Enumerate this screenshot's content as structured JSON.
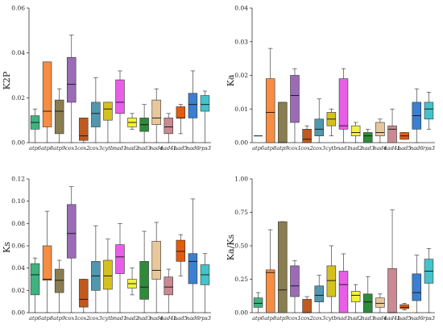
{
  "categories": [
    "atp6",
    "atp8",
    "atp9",
    "cox1",
    "cox2",
    "cox3",
    "cytb",
    "nad1",
    "nad2",
    "nad3",
    "nad4",
    "nad4L",
    "nad5",
    "nad6",
    "rps3"
  ],
  "colors": [
    "#3fb27f",
    "#f58d42",
    "#8a7d4f",
    "#9b6bb8",
    "#c05a1e",
    "#4f98b0",
    "#d4c11e",
    "#e85ee8",
    "#f2f23a",
    "#2e8b3a",
    "#e8c79a",
    "#c98a92",
    "#e35b0e",
    "#3b7fd0",
    "#45c2cc"
  ],
  "chart_data": [
    {
      "type": "box",
      "ylabel": "K2P",
      "ylim": [
        0,
        0.06
      ],
      "yticks": [
        0.0,
        0.02,
        0.04,
        0.06
      ],
      "ytick_labels": [
        "0.00",
        "0.02",
        "0.04",
        "0.06"
      ],
      "boxes": [
        {
          "min": 0.0,
          "q1": 0.006,
          "median": 0.009,
          "q3": 0.012,
          "max": 0.015
        },
        {
          "min": 0.0,
          "q1": 0.007,
          "median": 0.014,
          "q3": 0.036,
          "max": 0.036
        },
        {
          "min": 0.0,
          "q1": 0.004,
          "median": 0.014,
          "q3": 0.019,
          "max": 0.024
        },
        {
          "min": 0.0,
          "q1": 0.018,
          "median": 0.026,
          "q3": 0.038,
          "max": 0.048
        },
        {
          "min": 0.0,
          "q1": 0.001,
          "median": 0.003,
          "q3": 0.011,
          "max": 0.011
        },
        {
          "min": 0.0,
          "q1": 0.007,
          "median": 0.013,
          "q3": 0.018,
          "max": 0.029
        },
        {
          "min": 0.0,
          "q1": 0.01,
          "median": 0.015,
          "q3": 0.018,
          "max": 0.018
        },
        {
          "min": 0.0,
          "q1": 0.013,
          "median": 0.018,
          "q3": 0.028,
          "max": 0.032
        },
        {
          "min": 0.006,
          "q1": 0.007,
          "median": 0.009,
          "q3": 0.011,
          "max": 0.013
        },
        {
          "min": 0.0,
          "q1": 0.005,
          "median": 0.008,
          "q3": 0.011,
          "max": 0.017
        },
        {
          "min": 0.0,
          "q1": 0.008,
          "median": 0.011,
          "q3": 0.019,
          "max": 0.024
        },
        {
          "min": 0.0,
          "q1": 0.004,
          "median": 0.007,
          "q3": 0.011,
          "max": 0.013
        },
        {
          "min": 0.004,
          "q1": 0.011,
          "median": 0.011,
          "q3": 0.016,
          "max": 0.017
        },
        {
          "min": 0.0,
          "q1": 0.011,
          "median": 0.017,
          "q3": 0.022,
          "max": 0.032
        },
        {
          "min": 0.0,
          "q1": 0.014,
          "median": 0.017,
          "q3": 0.021,
          "max": 0.023
        }
      ]
    },
    {
      "type": "box",
      "ylabel": "Ka",
      "ylim": [
        0,
        0.04
      ],
      "yticks": [
        0.0,
        0.01,
        0.02,
        0.03,
        0.04
      ],
      "ytick_labels": [
        "0.00",
        "0.01",
        "0.02",
        "0.03",
        "0.04"
      ],
      "boxes": [
        {
          "single": 0.002
        },
        {
          "min": 0.0,
          "q1": 0.0,
          "median": 0.009,
          "q3": 0.019,
          "max": 0.028
        },
        {
          "min": 0.0,
          "q1": 0.0,
          "median": 0.0,
          "q3": 0.012,
          "max": 0.012
        },
        {
          "min": 0.0,
          "q1": 0.006,
          "median": 0.014,
          "q3": 0.02,
          "max": 0.022
        },
        {
          "min": 0.0,
          "q1": 0.0,
          "median": 0.001,
          "q3": 0.004,
          "max": 0.005
        },
        {
          "min": 0.0,
          "q1": 0.002,
          "median": 0.004,
          "q3": 0.007,
          "max": 0.013
        },
        {
          "min": 0.002,
          "q1": 0.005,
          "median": 0.007,
          "q3": 0.009,
          "max": 0.01
        },
        {
          "min": 0.0,
          "q1": 0.004,
          "median": 0.005,
          "q3": 0.019,
          "max": 0.022
        },
        {
          "min": 0.0,
          "q1": 0.002,
          "median": 0.003,
          "q3": 0.005,
          "max": 0.006
        },
        {
          "min": 0.0,
          "q1": 0.0,
          "median": 0.002,
          "q3": 0.003,
          "max": 0.004
        },
        {
          "min": 0.0,
          "q1": 0.002,
          "median": 0.003,
          "q3": 0.006,
          "max": 0.007
        },
        {
          "min": 0.0,
          "q1": 0.0,
          "median": 0.004,
          "q3": 0.005,
          "max": 0.01
        },
        {
          "min": 0.001,
          "q1": 0.001,
          "median": 0.002,
          "q3": 0.003,
          "max": 0.003
        },
        {
          "min": 0.0,
          "q1": 0.004,
          "median": 0.008,
          "q3": 0.012,
          "max": 0.016
        },
        {
          "min": 0.004,
          "q1": 0.007,
          "median": 0.01,
          "q3": 0.012,
          "max": 0.015
        }
      ]
    },
    {
      "type": "box",
      "ylabel": "Ks",
      "ylim": [
        0,
        0.12
      ],
      "yticks": [
        0.0,
        0.02,
        0.04,
        0.06,
        0.08,
        0.1,
        0.12
      ],
      "ytick_labels": [
        "0.00",
        "0.02",
        "0.04",
        "0.06",
        "0.08",
        "0.10",
        "0.12"
      ],
      "boxes": [
        {
          "min": 0.0,
          "q1": 0.016,
          "median": 0.034,
          "q3": 0.044,
          "max": 0.049
        },
        {
          "min": 0.0,
          "q1": 0.029,
          "median": 0.03,
          "q3": 0.06,
          "max": 0.091
        },
        {
          "min": 0.0,
          "q1": 0.018,
          "median": 0.029,
          "q3": 0.039,
          "max": 0.047
        },
        {
          "min": 0.0,
          "q1": 0.049,
          "median": 0.071,
          "q3": 0.097,
          "max": 0.113
        },
        {
          "min": 0.0,
          "q1": 0.005,
          "median": 0.012,
          "q3": 0.03,
          "max": 0.03
        },
        {
          "min": 0.0,
          "q1": 0.02,
          "median": 0.033,
          "q3": 0.046,
          "max": 0.078
        },
        {
          "min": 0.0,
          "q1": 0.021,
          "median": 0.033,
          "q3": 0.047,
          "max": 0.066
        },
        {
          "min": 0.0,
          "q1": 0.035,
          "median": 0.05,
          "q3": 0.061,
          "max": 0.08
        },
        {
          "min": 0.016,
          "q1": 0.022,
          "median": 0.026,
          "q3": 0.03,
          "max": 0.04
        },
        {
          "min": 0.0,
          "q1": 0.012,
          "median": 0.023,
          "q3": 0.046,
          "max": 0.073
        },
        {
          "min": 0.0,
          "q1": 0.03,
          "median": 0.038,
          "q3": 0.064,
          "max": 0.081
        },
        {
          "min": 0.0,
          "q1": 0.016,
          "median": 0.023,
          "q3": 0.032,
          "max": 0.039
        },
        {
          "min": 0.033,
          "q1": 0.046,
          "median": 0.055,
          "q3": 0.065,
          "max": 0.07
        },
        {
          "min": 0.0,
          "q1": 0.026,
          "median": 0.046,
          "q3": 0.053,
          "max": 0.102
        },
        {
          "min": 0.0,
          "q1": 0.025,
          "median": 0.034,
          "q3": 0.043,
          "max": 0.053
        }
      ]
    },
    {
      "type": "box",
      "ylabel": "Ka/Ks",
      "ylim": [
        0,
        1.0
      ],
      "yticks": [
        0.0,
        0.25,
        0.5,
        0.75,
        1.0
      ],
      "ytick_labels": [
        "0.00",
        "0.25",
        "0.50",
        "0.75",
        "1.00"
      ],
      "boxes": [
        {
          "min": 0.0,
          "q1": 0.04,
          "median": 0.07,
          "q3": 0.11,
          "max": 0.15
        },
        {
          "min": 0.0,
          "q1": 0.0,
          "median": 0.3,
          "q3": 0.32,
          "max": 0.62
        },
        {
          "min": 0.0,
          "q1": 0.0,
          "median": 0.17,
          "q3": 0.68,
          "max": 0.68
        },
        {
          "min": 0.0,
          "q1": 0.12,
          "median": 0.2,
          "q3": 0.35,
          "max": 0.39
        },
        {
          "min": 0.0,
          "q1": 0.0,
          "median": 0.0,
          "q3": 0.1,
          "max": 0.12
        },
        {
          "min": 0.0,
          "q1": 0.08,
          "median": 0.13,
          "q3": 0.2,
          "max": 0.28
        },
        {
          "min": 0.0,
          "q1": 0.12,
          "median": 0.24,
          "q3": 0.35,
          "max": 0.5
        },
        {
          "min": 0.0,
          "q1": 0.0,
          "median": 0.21,
          "q3": 0.31,
          "max": 0.44
        },
        {
          "min": 0.0,
          "q1": 0.08,
          "median": 0.13,
          "q3": 0.16,
          "max": 0.21
        },
        {
          "min": 0.0,
          "q1": 0.0,
          "median": 0.08,
          "q3": 0.14,
          "max": 0.27
        },
        {
          "min": 0.0,
          "q1": 0.04,
          "median": 0.07,
          "q3": 0.11,
          "max": 0.14
        },
        {
          "min": 0.0,
          "q1": 0.0,
          "median": 0.0,
          "q3": 0.33,
          "max": 0.77
        },
        {
          "min": 0.02,
          "q1": 0.03,
          "median": 0.04,
          "q3": 0.06,
          "max": 0.07
        },
        {
          "min": 0.0,
          "q1": 0.09,
          "median": 0.15,
          "q3": 0.29,
          "max": 0.43
        },
        {
          "min": 0.0,
          "q1": 0.22,
          "median": 0.31,
          "q3": 0.4,
          "max": 0.48
        }
      ]
    }
  ]
}
